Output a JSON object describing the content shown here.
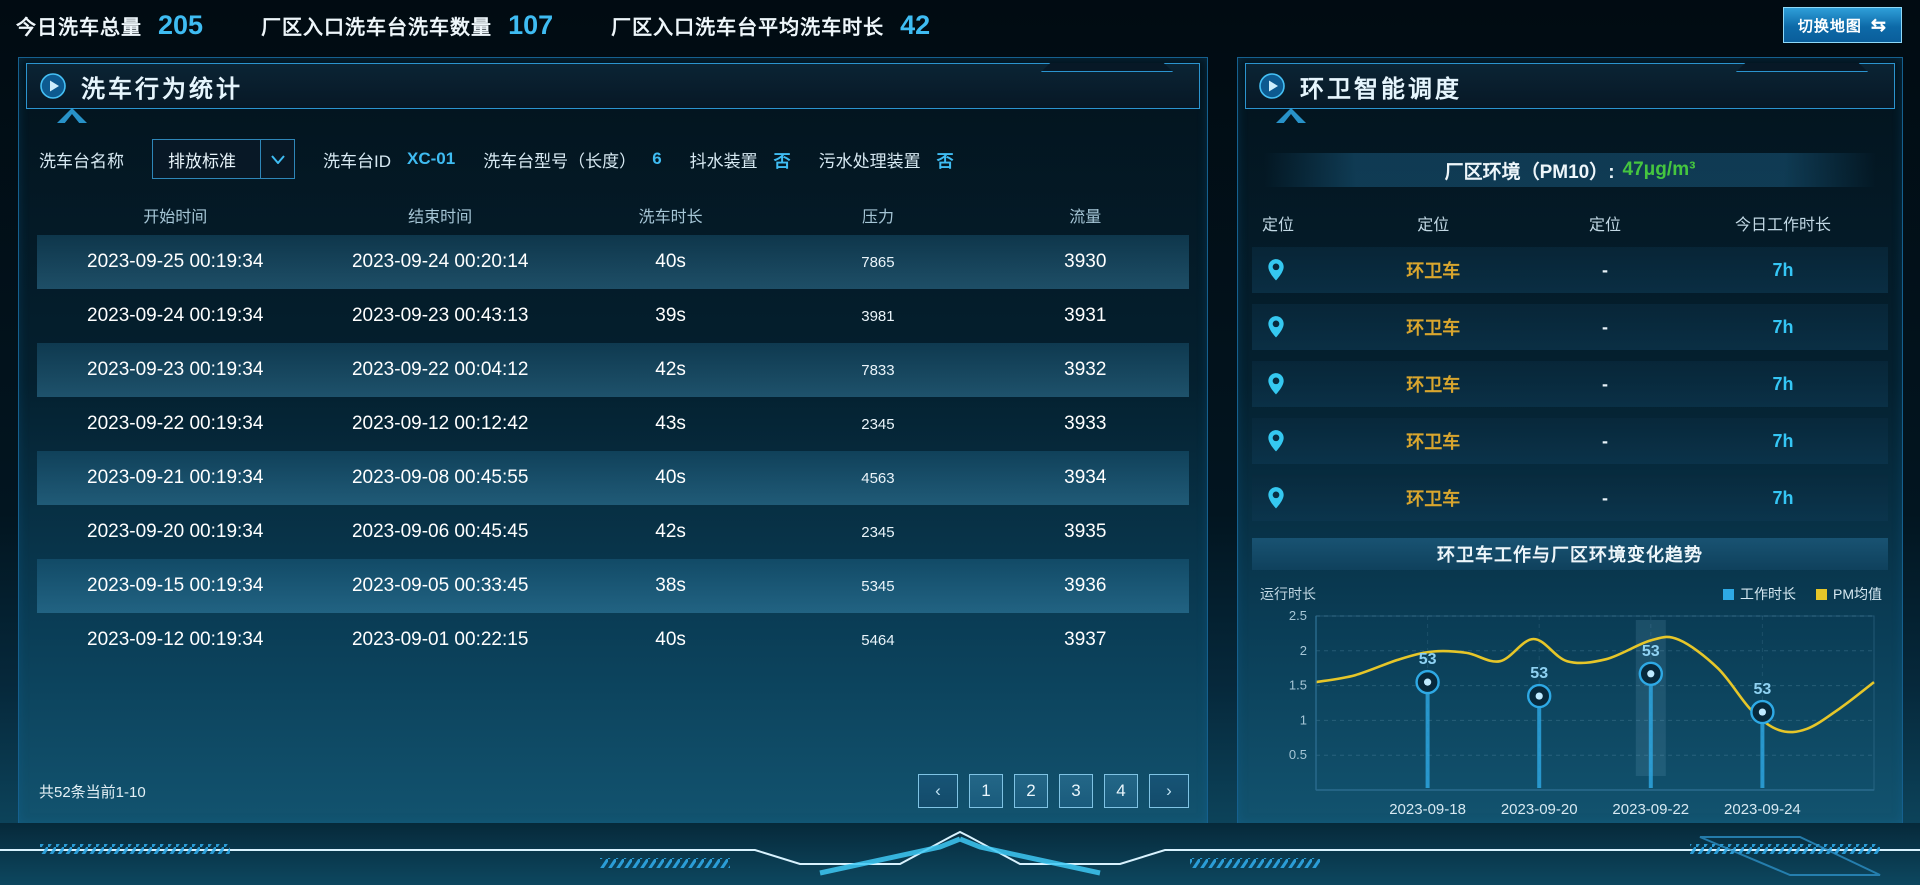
{
  "topbar": {
    "stats": [
      {
        "label": "今日洗车总量",
        "value": "205"
      },
      {
        "label": "厂区入口洗车台洗车数量",
        "value": "107"
      },
      {
        "label": "厂区入口洗车台平均洗车时长",
        "value": "42"
      }
    ],
    "map_button": {
      "label": "切换地图",
      "icon": "⇆"
    }
  },
  "left_panel": {
    "title": "洗车行为统计",
    "filters": {
      "name_label": "洗车台名称",
      "name_value": "排放标准",
      "id_label": "洗车台ID",
      "id_value": "XC-01",
      "model_label": "洗车台型号（长度）",
      "model_value": "6",
      "shake_label": "抖水装置",
      "shake_value": "否",
      "sewage_label": "污水处理装置",
      "sewage_value": "否"
    },
    "table": {
      "columns": [
        "开始时间",
        "结束时间",
        "洗车时长",
        "压力",
        "流量"
      ],
      "rows": [
        [
          "2023-09-25 00:19:34",
          "2023-09-24 00:20:14",
          "40s",
          "7865",
          "3930"
        ],
        [
          "2023-09-24 00:19:34",
          "2023-09-23 00:43:13",
          "39s",
          "3981",
          "3931"
        ],
        [
          "2023-09-23 00:19:34",
          "2023-09-22 00:04:12",
          "42s",
          "7833",
          "3932"
        ],
        [
          "2023-09-22 00:19:34",
          "2023-09-12 00:12:42",
          "43s",
          "2345",
          "3933"
        ],
        [
          "2023-09-21 00:19:34",
          "2023-09-08 00:45:55",
          "40s",
          "4563",
          "3934"
        ],
        [
          "2023-09-20 00:19:34",
          "2023-09-06 00:45:45",
          "42s",
          "2345",
          "3935"
        ],
        [
          "2023-09-15 00:19:34",
          "2023-09-05 00:33:45",
          "38s",
          "5345",
          "3936"
        ],
        [
          "2023-09-12 00:19:34",
          "2023-09-01 00:22:15",
          "40s",
          "5464",
          "3937"
        ]
      ]
    },
    "pagination": {
      "summary": "共52条当前1-10",
      "prev": "‹",
      "next": "›",
      "pages": [
        "1",
        "2",
        "3",
        "4"
      ]
    }
  },
  "right_panel": {
    "title": "环卫智能调度",
    "pm_label": "厂区环境（PM10）:",
    "pm_value": "47μg/m³",
    "vehicle_table": {
      "columns": [
        "定位",
        "定位",
        "定位",
        "今日工作时长"
      ],
      "rows": [
        {
          "name": "环卫车",
          "location": "-",
          "hours": "7h"
        },
        {
          "name": "环卫车",
          "location": "-",
          "hours": "7h"
        },
        {
          "name": "环卫车",
          "location": "-",
          "hours": "7h"
        },
        {
          "name": "环卫车",
          "location": "-",
          "hours": "7h"
        },
        {
          "name": "环卫车",
          "location": "-",
          "hours": "7h"
        }
      ]
    },
    "trend_title": "环卫车工作与厂区环境变化趋势"
  },
  "chart_data": {
    "type": "line",
    "title": "环卫车工作与厂区环境变化趋势",
    "ylabel": "运行时长",
    "ylim": [
      0,
      2.5
    ],
    "yticks": [
      0.5,
      1,
      1.5,
      2,
      2.5
    ],
    "categories": [
      "2023-09-18",
      "2023-09-20",
      "2023-09-22",
      "2023-09-24"
    ],
    "series": [
      {
        "name": "工作时长",
        "type": "lollipop",
        "color": "#2ea9e5",
        "axis_positions": [
          1.55,
          1.35,
          1.67,
          1.12
        ],
        "point_labels": [
          "53",
          "53",
          "53",
          "53"
        ]
      },
      {
        "name": "PM均值",
        "type": "smooth_line",
        "color": "#e6c629",
        "curve_x_fraction": [
          0,
          0.07,
          0.15,
          0.21,
          0.27,
          0.33,
          0.39,
          0.45,
          0.52,
          0.6,
          0.65,
          0.72,
          0.78,
          0.83,
          0.88,
          0.94,
          1
        ],
        "curve_values": [
          1.55,
          1.65,
          1.88,
          1.99,
          1.97,
          1.85,
          2.17,
          1.85,
          1.88,
          2.15,
          2.16,
          1.75,
          1.15,
          0.86,
          0.88,
          1.18,
          1.55
        ]
      }
    ],
    "highlight_category": "2023-09-22",
    "legend_position": "top-right",
    "grid": "dashed"
  },
  "colors": {
    "accent_blue": "#3fbcf2",
    "gold": "#d9a62e",
    "green": "#45c63f",
    "line_yellow": "#e6c629",
    "marker_blue": "#2ea9e5",
    "pin_cyan": "#35c8f0"
  }
}
